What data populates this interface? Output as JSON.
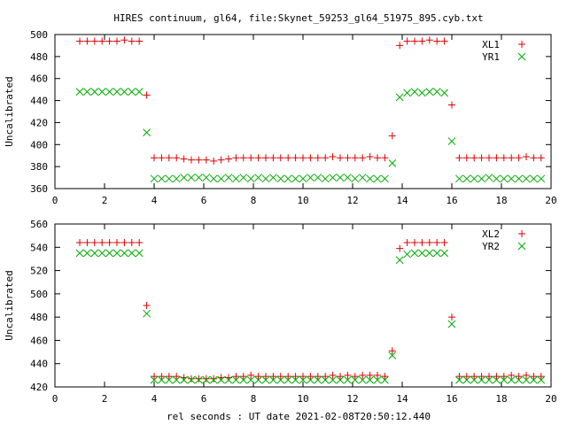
{
  "chart_data": {
    "title": "HIRES continuum, gl64, file:Skynet_59253_gl64_51975_895.cyb.txt",
    "xlabel": "rel seconds : UT date 2021-02-08T20:50:12.440",
    "panels": [
      {
        "type": "scatter",
        "ylabel": "Uncalibrated",
        "xlim": [
          0,
          20
        ],
        "ylim": [
          360,
          500
        ],
        "xticks": [
          0,
          2,
          4,
          6,
          8,
          10,
          12,
          14,
          16,
          18,
          20
        ],
        "yticks": [
          360,
          380,
          400,
          420,
          440,
          460,
          480,
          500
        ],
        "legend_position": "top-right",
        "series": [
          {
            "name": "XL1",
            "marker": "plus",
            "color": "#dd0000",
            "x": [
              1.0,
              1.3,
              1.6,
              1.9,
              2.2,
              2.5,
              2.8,
              3.1,
              3.4,
              3.7,
              4.0,
              4.3,
              4.6,
              4.9,
              5.2,
              5.5,
              5.8,
              6.1,
              6.4,
              6.7,
              7.0,
              7.3,
              7.6,
              7.9,
              8.2,
              8.5,
              8.8,
              9.1,
              9.4,
              9.7,
              10.0,
              10.3,
              10.6,
              10.9,
              11.2,
              11.5,
              11.8,
              12.1,
              12.4,
              12.7,
              13.0,
              13.3,
              13.6,
              13.9,
              14.2,
              14.5,
              14.8,
              15.1,
              15.4,
              15.7,
              16.0,
              16.3,
              16.6,
              16.9,
              17.2,
              17.5,
              17.8,
              18.1,
              18.4,
              18.7,
              19.0,
              19.3,
              19.6
            ],
            "y": [
              494,
              494,
              494,
              494,
              494,
              494,
              495,
              494,
              494,
              445,
              388,
              388,
              388,
              388,
              387,
              386,
              386,
              386,
              385,
              386,
              387,
              388,
              388,
              388,
              388,
              388,
              388,
              388,
              388,
              388,
              388,
              388,
              388,
              388,
              389,
              388,
              388,
              388,
              388,
              389,
              388,
              388,
              408,
              490,
              494,
              494,
              494,
              495,
              494,
              494,
              436,
              388,
              388,
              388,
              388,
              388,
              388,
              388,
              388,
              388,
              389,
              388,
              388
            ]
          },
          {
            "name": "YR1",
            "marker": "cross",
            "color": "#00aa00",
            "x": [
              1.0,
              1.3,
              1.6,
              1.9,
              2.2,
              2.5,
              2.8,
              3.1,
              3.4,
              3.7,
              4.0,
              4.3,
              4.6,
              4.9,
              5.2,
              5.5,
              5.8,
              6.1,
              6.4,
              6.7,
              7.0,
              7.3,
              7.6,
              7.9,
              8.2,
              8.5,
              8.8,
              9.1,
              9.4,
              9.7,
              10.0,
              10.3,
              10.6,
              10.9,
              11.2,
              11.5,
              11.8,
              12.1,
              12.4,
              12.7,
              13.0,
              13.3,
              13.6,
              13.9,
              14.2,
              14.5,
              14.8,
              15.1,
              15.4,
              15.7,
              16.0,
              16.3,
              16.6,
              16.9,
              17.2,
              17.5,
              17.8,
              18.1,
              18.4,
              18.7,
              19.0,
              19.3,
              19.6
            ],
            "y": [
              448,
              448,
              448,
              448,
              448,
              448,
              448,
              448,
              448,
              411,
              369,
              369,
              369,
              369,
              370,
              370,
              370,
              370,
              369,
              369,
              370,
              369,
              370,
              369,
              370,
              369,
              370,
              369,
              369,
              369,
              369,
              370,
              370,
              369,
              370,
              370,
              370,
              369,
              370,
              369,
              369,
              369,
              383,
              443,
              447,
              448,
              447,
              448,
              448,
              447,
              403,
              369,
              369,
              369,
              369,
              370,
              369,
              369,
              369,
              369,
              369,
              369,
              369
            ]
          }
        ]
      },
      {
        "type": "scatter",
        "ylabel": "Uncalibrated",
        "xlim": [
          0,
          20
        ],
        "ylim": [
          420,
          560
        ],
        "xticks": [
          0,
          2,
          4,
          6,
          8,
          10,
          12,
          14,
          16,
          18,
          20
        ],
        "yticks": [
          420,
          440,
          460,
          480,
          500,
          520,
          540,
          560
        ],
        "legend_position": "top-right",
        "series": [
          {
            "name": "XL2",
            "marker": "plus",
            "color": "#dd0000",
            "x": [
              1.0,
              1.3,
              1.6,
              1.9,
              2.2,
              2.5,
              2.8,
              3.1,
              3.4,
              3.7,
              4.0,
              4.3,
              4.6,
              4.9,
              5.2,
              5.5,
              5.8,
              6.1,
              6.4,
              6.7,
              7.0,
              7.3,
              7.6,
              7.9,
              8.2,
              8.5,
              8.8,
              9.1,
              9.4,
              9.7,
              10.0,
              10.3,
              10.6,
              10.9,
              11.2,
              11.5,
              11.8,
              12.1,
              12.4,
              12.7,
              13.0,
              13.3,
              13.6,
              13.9,
              14.2,
              14.5,
              14.8,
              15.1,
              15.4,
              15.7,
              16.0,
              16.3,
              16.6,
              16.9,
              17.2,
              17.5,
              17.8,
              18.1,
              18.4,
              18.7,
              19.0,
              19.3,
              19.6
            ],
            "y": [
              544,
              544,
              544,
              544,
              544,
              544,
              544,
              544,
              544,
              490,
              429,
              429,
              429,
              429,
              428,
              427,
              427,
              427,
              427,
              428,
              428,
              429,
              429,
              430,
              429,
              429,
              429,
              429,
              429,
              429,
              429,
              429,
              429,
              429,
              430,
              429,
              430,
              429,
              430,
              430,
              430,
              429,
              451,
              539,
              544,
              544,
              544,
              544,
              544,
              544,
              480,
              429,
              429,
              429,
              429,
              429,
              429,
              429,
              430,
              429,
              430,
              429,
              429
            ]
          },
          {
            "name": "YR2",
            "marker": "cross",
            "color": "#00aa00",
            "x": [
              1.0,
              1.3,
              1.6,
              1.9,
              2.2,
              2.5,
              2.8,
              3.1,
              3.4,
              3.7,
              4.0,
              4.3,
              4.6,
              4.9,
              5.2,
              5.5,
              5.8,
              6.1,
              6.4,
              6.7,
              7.0,
              7.3,
              7.6,
              7.9,
              8.2,
              8.5,
              8.8,
              9.1,
              9.4,
              9.7,
              10.0,
              10.3,
              10.6,
              10.9,
              11.2,
              11.5,
              11.8,
              12.1,
              12.4,
              12.7,
              13.0,
              13.3,
              13.6,
              13.9,
              14.2,
              14.5,
              14.8,
              15.1,
              15.4,
              15.7,
              16.0,
              16.3,
              16.6,
              16.9,
              17.2,
              17.5,
              17.8,
              18.1,
              18.4,
              18.7,
              19.0,
              19.3,
              19.6
            ],
            "y": [
              535,
              535,
              535,
              535,
              535,
              535,
              535,
              535,
              535,
              483,
              426,
              426,
              426,
              426,
              426,
              426,
              426,
              426,
              426,
              426,
              426,
              426,
              426,
              426,
              426,
              426,
              426,
              426,
              426,
              426,
              426,
              426,
              426,
              426,
              426,
              426,
              426,
              426,
              426,
              426,
              426,
              426,
              447,
              529,
              534,
              535,
              535,
              535,
              535,
              535,
              474,
              426,
              426,
              426,
              426,
              426,
              426,
              426,
              426,
              426,
              426,
              426,
              426
            ]
          }
        ]
      }
    ]
  }
}
